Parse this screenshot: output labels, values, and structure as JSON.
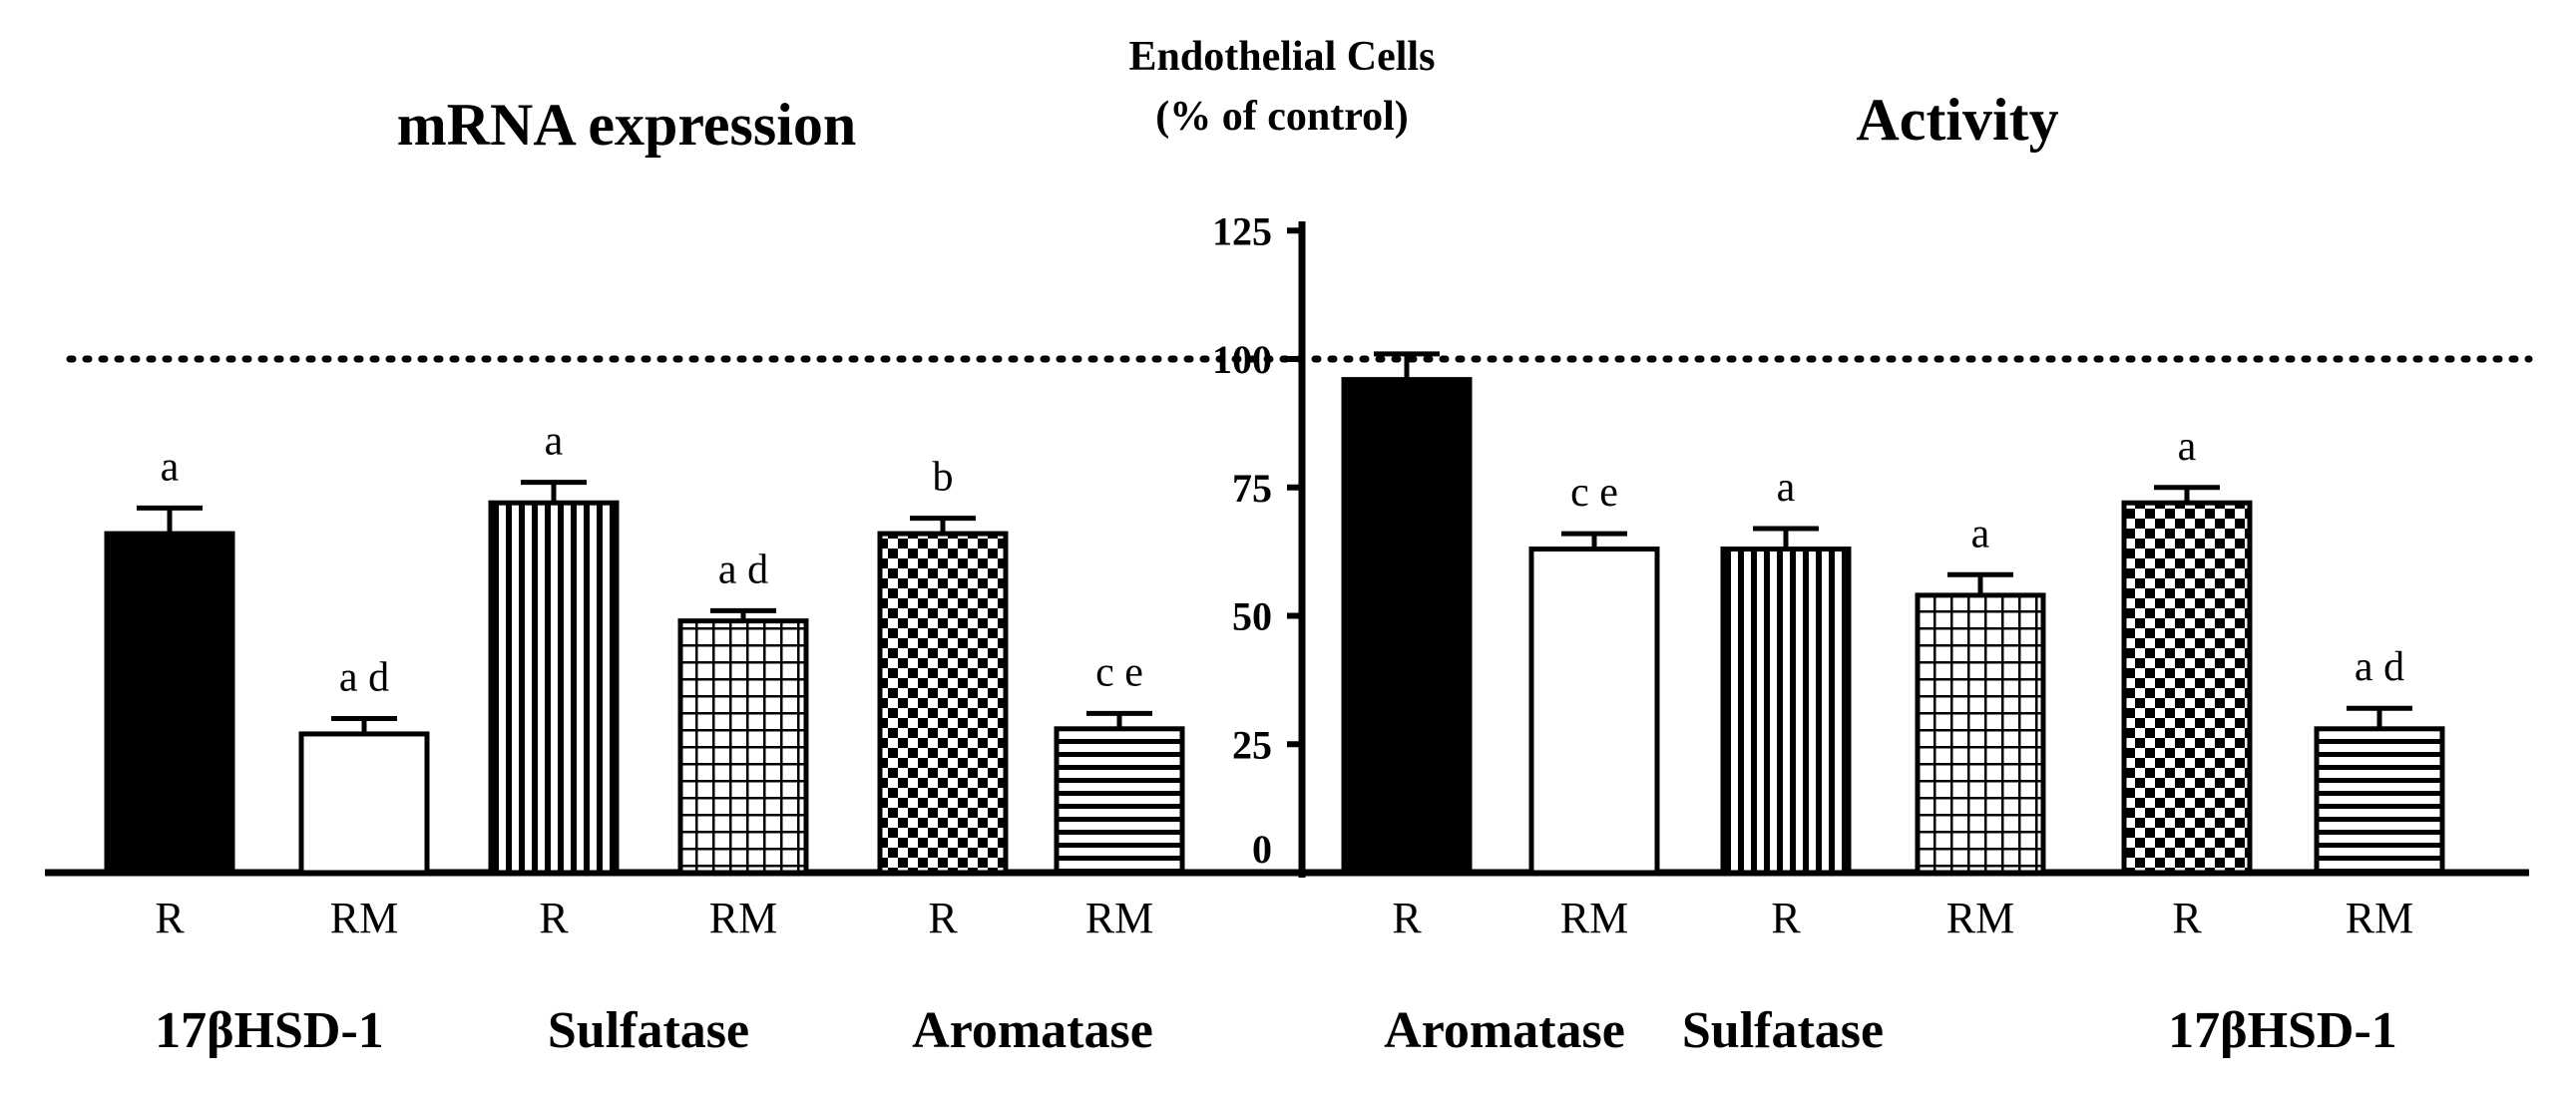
{
  "chart_data": [
    {
      "type": "bar",
      "title": "mRNA expression",
      "ylabel": "Endothelial Cells (% of control)",
      "ylim": [
        0,
        125
      ],
      "reference_line": 100,
      "groups": [
        "17βHSD-1",
        "Sulfatase",
        "Aromatase"
      ],
      "categories": [
        "R",
        "RM",
        "R",
        "RM",
        "R",
        "RM"
      ],
      "values": [
        66,
        27,
        72,
        49,
        66,
        28
      ],
      "errors": [
        5,
        3,
        4,
        2,
        3,
        3
      ],
      "annotations": [
        "a",
        "a d",
        "a",
        "a d",
        "b",
        "c e"
      ],
      "patterns": [
        "solid",
        "open",
        "vlines",
        "grid",
        "checker",
        "hlines"
      ]
    },
    {
      "type": "bar",
      "title": "Activity",
      "ylabel": "Endothelial Cells (% of control)",
      "ylim": [
        0,
        125
      ],
      "reference_line": 100,
      "groups": [
        "Aromatase",
        "Sulfatase",
        "17βHSD-1"
      ],
      "categories": [
        "R",
        "RM",
        "R",
        "RM",
        "R",
        "RM"
      ],
      "values": [
        96,
        63,
        63,
        54,
        72,
        28
      ],
      "errors": [
        5,
        3,
        4,
        4,
        3,
        4
      ],
      "annotations": [
        "",
        "c e",
        "a",
        "a",
        "a",
        "a d"
      ],
      "patterns": [
        "solid",
        "open",
        "vlines",
        "grid",
        "checker",
        "hlines"
      ]
    }
  ],
  "axis": {
    "title_line1": "Endothelial Cells",
    "title_line2": "(% of control)",
    "ticks": [
      0,
      25,
      50,
      75,
      100,
      125
    ]
  },
  "colors": {
    "ink": "#000000",
    "background": "#ffffff"
  }
}
